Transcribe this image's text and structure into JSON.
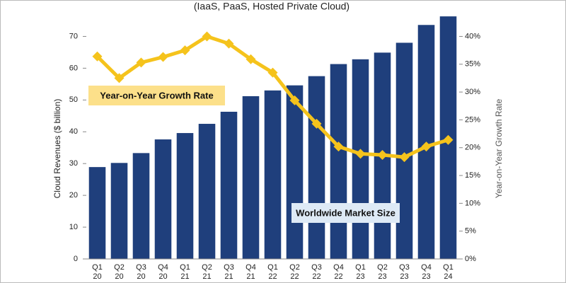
{
  "chart_data": {
    "type": "bar_line",
    "subtitle": "(IaaS, PaaS, Hosted Private Cloud)",
    "ylabel": "Cloud Revenues ($ billion)",
    "y2label": "Year-on-Year Growth Rate",
    "categories": [
      "Q1 20",
      "Q2 20",
      "Q3 20",
      "Q4 20",
      "Q1 21",
      "Q2 21",
      "Q3 21",
      "Q4 21",
      "Q1 22",
      "Q2 22",
      "Q3 22",
      "Q4 22",
      "Q1 23",
      "Q2 23",
      "Q3 23",
      "Q4 23",
      "Q1 24"
    ],
    "series": [
      {
        "name": "Worldwide Market Size",
        "color": "#1f3f7c",
        "values": [
          28.9,
          30.2,
          33.3,
          37.6,
          39.6,
          42.5,
          46.3,
          51.2,
          53.0,
          54.6,
          57.5,
          61.3,
          62.8,
          64.9,
          68.0,
          73.6,
          76.3
        ]
      },
      {
        "name": "Year-on-Year Growth Rate",
        "color": "#f5c31c",
        "axis": "y2",
        "values": [
          36.4,
          32.5,
          35.3,
          36.3,
          37.5,
          40.0,
          38.7,
          35.9,
          33.5,
          28.5,
          24.3,
          20.2,
          18.9,
          18.7,
          18.3,
          20.2,
          21.4
        ]
      }
    ],
    "ylim": [
      0,
      77
    ],
    "yticks": [
      0,
      10,
      20,
      30,
      40,
      50,
      60,
      70
    ],
    "y2lim": [
      0,
      44
    ],
    "y2ticks": [
      {
        "value": 0,
        "label": "0%"
      },
      {
        "value": 5,
        "label": "5%"
      },
      {
        "value": 10,
        "label": "10%"
      },
      {
        "value": 15,
        "label": "15%"
      },
      {
        "value": 20,
        "label": "20%"
      },
      {
        "value": 25,
        "label": "25%"
      },
      {
        "value": 30,
        "label": "30%"
      },
      {
        "value": 35,
        "label": "35%"
      },
      {
        "value": 40,
        "label": "40%"
      }
    ],
    "grid": false
  }
}
